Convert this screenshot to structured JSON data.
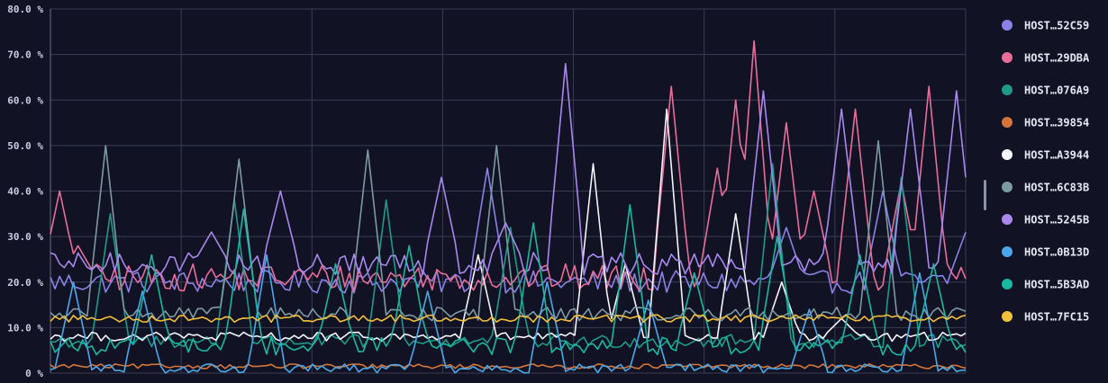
{
  "chart_data": {
    "type": "line",
    "title": "",
    "xlabel": "",
    "ylabel": "",
    "ylim": [
      0,
      80
    ],
    "yticks": [
      "0 %",
      "10.0 %",
      "20.0 %",
      "30.0 %",
      "40.0 %",
      "50.0 %",
      "60.0 %",
      "70.0 %",
      "80.0 %"
    ],
    "grid": true,
    "legend_position": "right",
    "n_points": 200,
    "series": [
      {
        "name": "HOST…52C59",
        "color": "#8a82e6",
        "base": 20,
        "noise": 2.5,
        "spikes": [
          [
            95,
            45
          ],
          [
            160,
            32
          ],
          [
            181,
            40
          ],
          [
            199,
            31
          ]
        ]
      },
      {
        "name": "HOST…29DBA",
        "color": "#e86e9a",
        "base": 21,
        "noise": 3,
        "spikes": [
          [
            2,
            40
          ],
          [
            6,
            28
          ],
          [
            135,
            63
          ],
          [
            145,
            45
          ],
          [
            149,
            60
          ],
          [
            153,
            73
          ],
          [
            160,
            55
          ],
          [
            166,
            40
          ],
          [
            175,
            58
          ],
          [
            185,
            42
          ],
          [
            191,
            63
          ]
        ]
      },
      {
        "name": "HOST…076A9",
        "color": "#1f9a8a",
        "base": 7,
        "noise": 1.5,
        "spikes": [
          [
            13,
            35
          ],
          [
            40,
            38
          ],
          [
            73,
            38
          ],
          [
            100,
            32
          ],
          [
            157,
            46
          ],
          [
            185,
            43
          ]
        ]
      },
      {
        "name": "HOST…39854",
        "color": "#d4763a",
        "base": 1.5,
        "noise": 0.5,
        "spikes": []
      },
      {
        "name": "HOST…A3944",
        "color": "#f4f4f8",
        "base": 8,
        "noise": 1,
        "spikes": [
          [
            93,
            26
          ],
          [
            118,
            46
          ],
          [
            125,
            24
          ],
          [
            134,
            58
          ],
          [
            149,
            35
          ],
          [
            159,
            20
          ],
          [
            172,
            12
          ]
        ]
      },
      {
        "name": "HOST…6C83B",
        "color": "#7d9aa2",
        "base": 13,
        "noise": 1.5,
        "spikes": [
          [
            12,
            50
          ],
          [
            41,
            47
          ],
          [
            69,
            49
          ],
          [
            97,
            50
          ],
          [
            180,
            51
          ]
        ]
      },
      {
        "name": "HOST…5245B",
        "color": "#a988ee",
        "base": 24,
        "noise": 2.5,
        "spikes": [
          [
            35,
            31
          ],
          [
            50,
            40
          ],
          [
            85,
            43
          ],
          [
            99,
            33
          ],
          [
            112,
            68
          ],
          [
            155,
            62
          ],
          [
            172,
            58
          ],
          [
            187,
            58
          ],
          [
            197,
            62
          ]
        ]
      },
      {
        "name": "HOST…0B13D",
        "color": "#4aa8e8",
        "base": 1,
        "noise": 1,
        "spikes": [
          [
            5,
            20
          ],
          [
            20,
            18
          ],
          [
            47,
            26
          ],
          [
            82,
            18
          ],
          [
            108,
            20
          ],
          [
            130,
            16
          ],
          [
            165,
            14
          ],
          [
            189,
            22
          ]
        ]
      },
      {
        "name": "HOST…5B3AD",
        "color": "#19b8a0",
        "base": 6,
        "noise": 2,
        "spikes": [
          [
            22,
            26
          ],
          [
            42,
            36
          ],
          [
            62,
            24
          ],
          [
            78,
            28
          ],
          [
            105,
            33
          ],
          [
            126,
            37
          ],
          [
            140,
            22
          ],
          [
            158,
            30
          ],
          [
            176,
            26
          ],
          [
            192,
            24
          ]
        ]
      },
      {
        "name": "HOST…7FC15",
        "color": "#f2bf3a",
        "base": 12,
        "noise": 0.8,
        "spikes": []
      }
    ]
  }
}
